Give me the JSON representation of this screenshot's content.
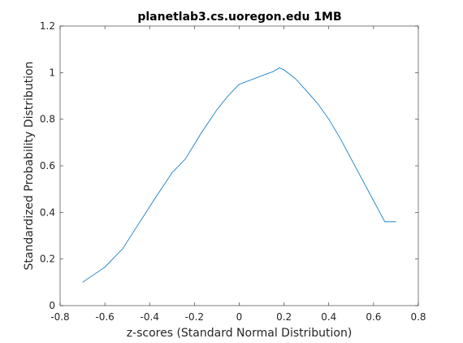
{
  "chart_data": {
    "type": "line",
    "title": "planetlab3.cs.uoregon.edu 1MB",
    "xlabel": "z-scores (Standard Normal Distribution)",
    "ylabel": "Standardized Probability Distribution",
    "xlim": [
      -0.8,
      0.8
    ],
    "ylim": [
      0,
      1.2
    ],
    "xticks": [
      -0.8,
      -0.6,
      -0.4,
      -0.2,
      0,
      0.2,
      0.4,
      0.6,
      0.8
    ],
    "xtick_labels": [
      "-0.8",
      "-0.6",
      "-0.4",
      "-0.2",
      "0",
      "0.2",
      "0.4",
      "0.6",
      "0.8"
    ],
    "yticks": [
      0,
      0.2,
      0.4,
      0.6,
      0.8,
      1.0,
      1.2
    ],
    "ytick_labels": [
      "0",
      "0.2",
      "0.4",
      "0.6",
      "0.8",
      "1",
      "1.2"
    ],
    "grid": false,
    "line_color": "#0072bd",
    "series": [
      {
        "x": [
          -0.7,
          -0.6,
          -0.52,
          -0.45,
          -0.38,
          -0.3,
          -0.24,
          -0.17,
          -0.1,
          -0.05,
          0.0,
          0.05,
          0.1,
          0.15,
          0.18,
          0.2,
          0.25,
          0.3,
          0.35,
          0.4,
          0.45,
          0.5,
          0.55,
          0.6,
          0.65,
          0.7
        ],
        "y": [
          0.1,
          0.165,
          0.245,
          0.35,
          0.455,
          0.57,
          0.63,
          0.74,
          0.84,
          0.9,
          0.95,
          0.968,
          0.986,
          1.004,
          1.02,
          1.012,
          0.975,
          0.922,
          0.868,
          0.8,
          0.72,
          0.63,
          0.54,
          0.45,
          0.36,
          0.36
        ]
      }
    ]
  }
}
